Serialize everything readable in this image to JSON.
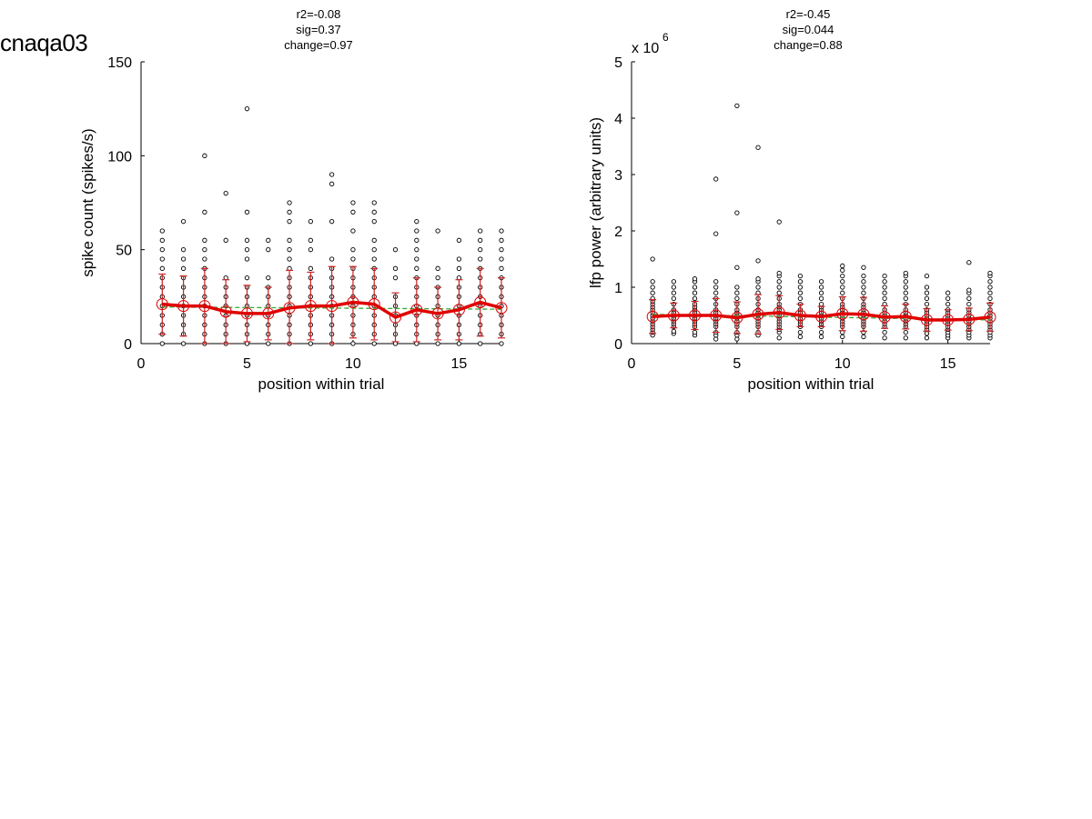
{
  "page_title": "cnaqa03",
  "colors": {
    "points": "#000000",
    "mean_line": "#e00000",
    "error_bars": "#cc2222",
    "fit_line": "#33aa33"
  },
  "chart_data": [
    {
      "type": "scatter",
      "title_lines": [
        "r2=-0.08",
        "sig=0.37",
        "change=0.97"
      ],
      "xlabel": "position within trial",
      "ylabel": "spike count (spikes/s)",
      "exponent_label": "",
      "xlim": [
        0,
        17
      ],
      "ylim": [
        0,
        150
      ],
      "xticks": [
        0,
        5,
        10,
        15
      ],
      "yticks": [
        0,
        50,
        100,
        150
      ],
      "x": [
        1,
        2,
        3,
        4,
        5,
        6,
        7,
        8,
        9,
        10,
        11,
        12,
        13,
        14,
        15,
        16,
        17
      ],
      "mean": [
        21,
        20,
        20,
        17,
        16,
        16,
        19,
        20,
        20,
        22,
        21,
        14,
        18,
        16,
        18,
        22,
        19
      ],
      "sd": [
        16,
        16,
        20,
        17,
        15,
        14,
        20,
        18,
        21,
        19,
        19,
        13,
        17,
        14,
        16,
        18,
        16
      ],
      "points": [
        [
          0,
          5,
          10,
          15,
          20,
          25,
          30,
          35,
          40,
          45,
          50,
          55,
          60
        ],
        [
          0,
          5,
          10,
          15,
          20,
          25,
          30,
          35,
          40,
          45,
          50,
          65
        ],
        [
          0,
          5,
          10,
          15,
          20,
          25,
          30,
          35,
          40,
          45,
          50,
          55,
          70,
          100
        ],
        [
          0,
          5,
          10,
          15,
          20,
          25,
          30,
          35,
          55,
          80
        ],
        [
          0,
          5,
          10,
          15,
          20,
          25,
          30,
          35,
          45,
          50,
          55,
          70,
          125
        ],
        [
          0,
          5,
          10,
          15,
          20,
          25,
          30,
          35,
          50,
          55
        ],
        [
          0,
          5,
          10,
          15,
          20,
          25,
          30,
          35,
          40,
          45,
          50,
          55,
          65,
          70,
          75
        ],
        [
          0,
          5,
          10,
          15,
          20,
          25,
          30,
          35,
          40,
          50,
          55,
          65
        ],
        [
          0,
          5,
          10,
          15,
          20,
          25,
          30,
          35,
          40,
          45,
          65,
          85,
          90
        ],
        [
          0,
          5,
          10,
          15,
          20,
          25,
          30,
          35,
          40,
          45,
          50,
          60,
          70,
          75
        ],
        [
          0,
          5,
          10,
          15,
          20,
          25,
          30,
          35,
          40,
          45,
          50,
          55,
          65,
          70,
          75
        ],
        [
          0,
          5,
          10,
          15,
          20,
          25,
          35,
          40,
          50
        ],
        [
          0,
          5,
          10,
          15,
          20,
          25,
          30,
          35,
          40,
          45,
          50,
          55,
          60,
          65
        ],
        [
          0,
          5,
          10,
          15,
          20,
          25,
          30,
          35,
          40,
          60
        ],
        [
          0,
          5,
          10,
          15,
          20,
          25,
          30,
          35,
          40,
          45,
          55
        ],
        [
          0,
          5,
          10,
          15,
          20,
          25,
          30,
          35,
          40,
          45,
          50,
          55,
          60
        ],
        [
          0,
          5,
          10,
          15,
          20,
          25,
          30,
          35,
          40,
          45,
          50,
          55,
          60
        ]
      ],
      "fit": [
        19.5,
        18.3
      ]
    },
    {
      "type": "scatter",
      "title_lines": [
        "r2=-0.45",
        "sig=0.044",
        "change=0.88"
      ],
      "xlabel": "position within trial",
      "ylabel": "lfp power (arbitrary units)",
      "exponent_label": "x 10",
      "exponent_power": "6",
      "xlim": [
        0,
        17
      ],
      "ylim": [
        0,
        5
      ],
      "xticks": [
        0,
        5,
        10,
        15
      ],
      "yticks": [
        0,
        1,
        2,
        3,
        4,
        5
      ],
      "x": [
        1,
        2,
        3,
        4,
        5,
        6,
        7,
        8,
        9,
        10,
        11,
        12,
        13,
        14,
        15,
        16,
        17
      ],
      "mean": [
        0.48,
        0.5,
        0.5,
        0.5,
        0.46,
        0.52,
        0.55,
        0.5,
        0.48,
        0.53,
        0.52,
        0.47,
        0.48,
        0.42,
        0.42,
        0.43,
        0.47
      ],
      "sd": [
        0.3,
        0.22,
        0.25,
        0.3,
        0.28,
        0.35,
        0.3,
        0.2,
        0.18,
        0.3,
        0.3,
        0.2,
        0.22,
        0.2,
        0.18,
        0.2,
        0.25
      ],
      "points": [
        [
          0.15,
          0.2,
          0.25,
          0.3,
          0.35,
          0.4,
          0.45,
          0.5,
          0.55,
          0.6,
          0.65,
          0.7,
          0.75,
          0.8,
          0.9,
          1.0,
          1.1,
          1.5
        ],
        [
          0.18,
          0.22,
          0.3,
          0.35,
          0.4,
          0.45,
          0.5,
          0.55,
          0.6,
          0.7,
          0.8,
          0.9,
          1.0,
          1.1
        ],
        [
          0.15,
          0.2,
          0.3,
          0.35,
          0.4,
          0.45,
          0.5,
          0.55,
          0.6,
          0.65,
          0.7,
          0.8,
          0.9,
          1.0,
          1.1,
          1.15
        ],
        [
          0.08,
          0.15,
          0.2,
          0.3,
          0.35,
          0.4,
          0.45,
          0.5,
          0.55,
          0.6,
          0.7,
          0.8,
          0.9,
          1.0,
          1.1,
          1.95,
          2.92
        ],
        [
          0.08,
          0.15,
          0.2,
          0.3,
          0.35,
          0.4,
          0.45,
          0.5,
          0.55,
          0.6,
          0.7,
          0.8,
          0.9,
          1.0,
          1.35,
          2.32,
          4.22
        ],
        [
          0.15,
          0.2,
          0.3,
          0.35,
          0.4,
          0.45,
          0.5,
          0.55,
          0.6,
          0.7,
          0.8,
          0.9,
          1.0,
          1.1,
          1.15,
          1.47,
          3.48
        ],
        [
          0.1,
          0.2,
          0.25,
          0.3,
          0.35,
          0.4,
          0.45,
          0.5,
          0.55,
          0.6,
          0.65,
          0.7,
          0.8,
          0.9,
          1.0,
          1.1,
          1.2,
          1.25,
          2.16
        ],
        [
          0.12,
          0.2,
          0.3,
          0.35,
          0.4,
          0.45,
          0.5,
          0.55,
          0.6,
          0.7,
          0.8,
          0.9,
          1.0,
          1.1,
          1.2
        ],
        [
          0.12,
          0.2,
          0.3,
          0.35,
          0.4,
          0.45,
          0.5,
          0.55,
          0.6,
          0.65,
          0.7,
          0.8,
          0.9,
          1.0,
          1.1
        ],
        [
          0.12,
          0.2,
          0.3,
          0.35,
          0.4,
          0.45,
          0.5,
          0.55,
          0.6,
          0.65,
          0.7,
          0.8,
          0.9,
          1.0,
          1.1,
          1.2,
          1.3,
          1.38
        ],
        [
          0.12,
          0.2,
          0.3,
          0.35,
          0.4,
          0.45,
          0.5,
          0.55,
          0.6,
          0.65,
          0.7,
          0.8,
          0.9,
          1.0,
          1.1,
          1.2,
          1.35
        ],
        [
          0.1,
          0.2,
          0.3,
          0.35,
          0.4,
          0.45,
          0.5,
          0.55,
          0.6,
          0.7,
          0.8,
          0.9,
          1.0,
          1.1,
          1.2
        ],
        [
          0.1,
          0.2,
          0.3,
          0.35,
          0.4,
          0.45,
          0.5,
          0.55,
          0.6,
          0.7,
          0.8,
          0.9,
          1.0,
          1.1,
          1.2,
          1.25
        ],
        [
          0.1,
          0.18,
          0.25,
          0.3,
          0.35,
          0.4,
          0.45,
          0.5,
          0.55,
          0.6,
          0.7,
          0.8,
          0.9,
          1.0,
          1.2
        ],
        [
          0.1,
          0.15,
          0.2,
          0.25,
          0.3,
          0.35,
          0.4,
          0.45,
          0.5,
          0.55,
          0.6,
          0.7,
          0.8,
          0.9
        ],
        [
          0.1,
          0.15,
          0.2,
          0.25,
          0.3,
          0.35,
          0.4,
          0.45,
          0.5,
          0.55,
          0.6,
          0.7,
          0.8,
          0.9,
          0.95,
          1.44
        ],
        [
          0.1,
          0.15,
          0.2,
          0.25,
          0.3,
          0.35,
          0.4,
          0.45,
          0.5,
          0.55,
          0.6,
          0.7,
          0.8,
          0.9,
          1.0,
          1.1,
          1.2,
          1.25
        ]
      ],
      "fit": [
        0.52,
        0.42
      ]
    }
  ]
}
